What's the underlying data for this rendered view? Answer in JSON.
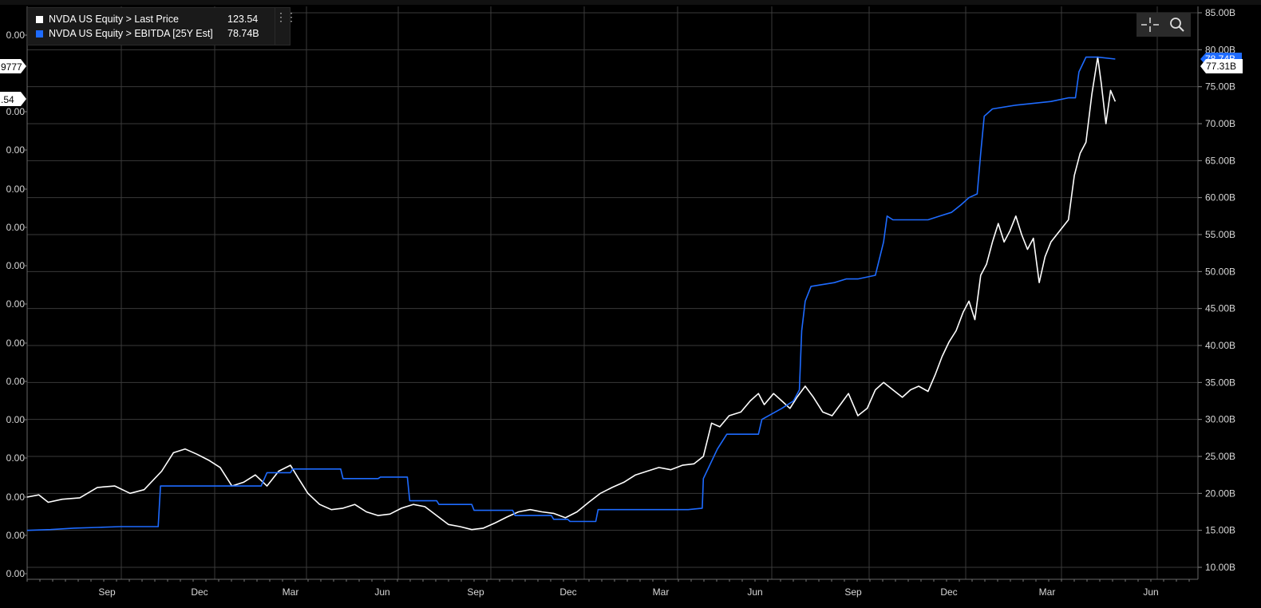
{
  "legend": {
    "items": [
      {
        "label": "NVDA US Equity > Last Price",
        "value": "123.54",
        "color": "#ffffff"
      },
      {
        "label": "NVDA US Equity > EBITDA [25Y Est]",
        "value": "78.74B",
        "color": "#1e6bff"
      }
    ]
  },
  "toolbar": {
    "crosshair_icon": "crosshair-icon",
    "zoom_icon": "magnifier-icon"
  },
  "chart_data": {
    "type": "line",
    "right_axis": {
      "ticks": [
        "10.00B",
        "15.00B",
        "20.00B",
        "25.00B",
        "30.00B",
        "35.00B",
        "40.00B",
        "45.00B",
        "50.00B",
        "55.00B",
        "60.00B",
        "65.00B",
        "70.00B",
        "75.00B",
        "80.00B",
        "85.00B"
      ],
      "range": [
        10,
        85
      ]
    },
    "left_axis": {
      "ticks": [
        "0.00",
        "0.00",
        "0.00",
        "0.00",
        "0.00",
        "0.00",
        "0.00",
        "0.00",
        "0.00",
        "0.00",
        "0.00",
        "0.00",
        "0.00",
        "0.00"
      ]
    },
    "x_ticks": [
      "Sep",
      "Dec",
      "Mar",
      "Jun",
      "Sep",
      "Dec",
      "Mar",
      "Jun",
      "Sep",
      "Dec",
      "Mar",
      "Jun"
    ],
    "x_range": [
      0,
      1
    ],
    "current_labels": {
      "right_blue": "78.74B",
      "right_white": "77.31B",
      "left_a": "9777",
      "left_b": ".54"
    },
    "series": [
      {
        "name": "NVDA US Equity > Last Price",
        "color": "#ffffff",
        "points": [
          [
            0.0,
            19.5
          ],
          [
            0.01,
            19.8
          ],
          [
            0.018,
            18.8
          ],
          [
            0.03,
            19.2
          ],
          [
            0.045,
            19.4
          ],
          [
            0.06,
            20.8
          ],
          [
            0.075,
            21.0
          ],
          [
            0.088,
            20.0
          ],
          [
            0.1,
            20.5
          ],
          [
            0.115,
            23.0
          ],
          [
            0.125,
            25.5
          ],
          [
            0.135,
            26.0
          ],
          [
            0.145,
            25.3
          ],
          [
            0.155,
            24.5
          ],
          [
            0.165,
            23.5
          ],
          [
            0.175,
            21.0
          ],
          [
            0.185,
            21.5
          ],
          [
            0.195,
            22.5
          ],
          [
            0.205,
            21.0
          ],
          [
            0.215,
            23.0
          ],
          [
            0.225,
            23.8
          ],
          [
            0.232,
            22.0
          ],
          [
            0.24,
            20.0
          ],
          [
            0.25,
            18.5
          ],
          [
            0.26,
            17.8
          ],
          [
            0.27,
            18.0
          ],
          [
            0.28,
            18.5
          ],
          [
            0.29,
            17.5
          ],
          [
            0.3,
            17.0
          ],
          [
            0.31,
            17.2
          ],
          [
            0.32,
            18.0
          ],
          [
            0.33,
            18.5
          ],
          [
            0.34,
            18.2
          ],
          [
            0.35,
            17.0
          ],
          [
            0.36,
            15.8
          ],
          [
            0.37,
            15.5
          ],
          [
            0.38,
            15.1
          ],
          [
            0.39,
            15.3
          ],
          [
            0.4,
            16.0
          ],
          [
            0.41,
            16.8
          ],
          [
            0.42,
            17.5
          ],
          [
            0.43,
            17.8
          ],
          [
            0.44,
            17.5
          ],
          [
            0.45,
            17.3
          ],
          [
            0.46,
            16.7
          ],
          [
            0.47,
            17.5
          ],
          [
            0.48,
            18.8
          ],
          [
            0.49,
            20.0
          ],
          [
            0.5,
            20.8
          ],
          [
            0.51,
            21.5
          ],
          [
            0.52,
            22.5
          ],
          [
            0.53,
            23.0
          ],
          [
            0.54,
            23.5
          ],
          [
            0.55,
            23.2
          ],
          [
            0.56,
            23.8
          ],
          [
            0.57,
            24.0
          ],
          [
            0.578,
            25.0
          ],
          [
            0.585,
            29.5
          ],
          [
            0.592,
            29.0
          ],
          [
            0.6,
            30.5
          ],
          [
            0.61,
            31.0
          ],
          [
            0.618,
            32.5
          ],
          [
            0.625,
            33.5
          ],
          [
            0.63,
            32.0
          ],
          [
            0.638,
            33.5
          ],
          [
            0.645,
            32.5
          ],
          [
            0.652,
            31.5
          ],
          [
            0.658,
            33.0
          ],
          [
            0.665,
            34.5
          ],
          [
            0.672,
            33.0
          ],
          [
            0.68,
            31.0
          ],
          [
            0.688,
            30.5
          ],
          [
            0.695,
            32.0
          ],
          [
            0.702,
            33.5
          ],
          [
            0.71,
            30.5
          ],
          [
            0.718,
            31.5
          ],
          [
            0.725,
            34.0
          ],
          [
            0.732,
            35.0
          ],
          [
            0.74,
            34.0
          ],
          [
            0.748,
            33.0
          ],
          [
            0.755,
            34.0
          ],
          [
            0.762,
            34.5
          ],
          [
            0.77,
            33.8
          ],
          [
            0.776,
            36.0
          ],
          [
            0.782,
            38.5
          ],
          [
            0.788,
            40.5
          ],
          [
            0.794,
            42.0
          ],
          [
            0.8,
            44.5
          ],
          [
            0.805,
            46.0
          ],
          [
            0.81,
            43.5
          ],
          [
            0.815,
            49.5
          ],
          [
            0.82,
            51.0
          ],
          [
            0.825,
            54.0
          ],
          [
            0.83,
            56.5
          ],
          [
            0.835,
            54.0
          ],
          [
            0.84,
            55.5
          ],
          [
            0.845,
            57.5
          ],
          [
            0.85,
            55.0
          ],
          [
            0.855,
            53.0
          ],
          [
            0.86,
            54.5
          ],
          [
            0.865,
            48.5
          ],
          [
            0.87,
            52.0
          ],
          [
            0.875,
            54.0
          ],
          [
            0.88,
            55.0
          ],
          [
            0.885,
            56.0
          ],
          [
            0.89,
            57.0
          ],
          [
            0.895,
            63.0
          ],
          [
            0.9,
            66.0
          ],
          [
            0.905,
            67.5
          ],
          [
            0.91,
            74.0
          ],
          [
            0.915,
            79.0
          ],
          [
            0.918,
            75.5
          ],
          [
            0.922,
            70.0
          ],
          [
            0.926,
            74.5
          ],
          [
            0.93,
            73.0
          ]
        ]
      },
      {
        "name": "NVDA US Equity > EBITDA [25Y Est]",
        "color": "#1e6bff",
        "points": [
          [
            0.0,
            15.0
          ],
          [
            0.02,
            15.1
          ],
          [
            0.04,
            15.3
          ],
          [
            0.06,
            15.4
          ],
          [
            0.08,
            15.5
          ],
          [
            0.112,
            15.5
          ],
          [
            0.114,
            21.0
          ],
          [
            0.2,
            21.0
          ],
          [
            0.205,
            22.8
          ],
          [
            0.225,
            22.8
          ],
          [
            0.227,
            23.3
          ],
          [
            0.268,
            23.3
          ],
          [
            0.27,
            22.0
          ],
          [
            0.3,
            22.0
          ],
          [
            0.302,
            22.2
          ],
          [
            0.325,
            22.2
          ],
          [
            0.327,
            19.0
          ],
          [
            0.35,
            19.0
          ],
          [
            0.352,
            18.5
          ],
          [
            0.38,
            18.5
          ],
          [
            0.382,
            17.7
          ],
          [
            0.415,
            17.7
          ],
          [
            0.417,
            17.0
          ],
          [
            0.448,
            17.0
          ],
          [
            0.45,
            16.5
          ],
          [
            0.462,
            16.5
          ],
          [
            0.464,
            16.2
          ],
          [
            0.486,
            16.2
          ],
          [
            0.488,
            17.8
          ],
          [
            0.54,
            17.8
          ],
          [
            0.565,
            17.8
          ],
          [
            0.577,
            18.0
          ],
          [
            0.578,
            22.0
          ],
          [
            0.59,
            26.0
          ],
          [
            0.598,
            28.0
          ],
          [
            0.625,
            28.0
          ],
          [
            0.628,
            30.0
          ],
          [
            0.645,
            31.5
          ],
          [
            0.655,
            32.5
          ],
          [
            0.66,
            34.0
          ],
          [
            0.662,
            42.0
          ],
          [
            0.665,
            46.0
          ],
          [
            0.67,
            48.0
          ],
          [
            0.69,
            48.5
          ],
          [
            0.7,
            49.0
          ],
          [
            0.71,
            49.0
          ],
          [
            0.725,
            49.5
          ],
          [
            0.732,
            54.0
          ],
          [
            0.735,
            57.5
          ],
          [
            0.74,
            57.0
          ],
          [
            0.77,
            57.0
          ],
          [
            0.78,
            57.5
          ],
          [
            0.79,
            58.0
          ],
          [
            0.798,
            59.0
          ],
          [
            0.805,
            60.0
          ],
          [
            0.812,
            60.5
          ],
          [
            0.815,
            66.0
          ],
          [
            0.818,
            71.0
          ],
          [
            0.825,
            72.0
          ],
          [
            0.845,
            72.5
          ],
          [
            0.875,
            73.0
          ],
          [
            0.89,
            73.5
          ],
          [
            0.896,
            73.5
          ],
          [
            0.899,
            77.0
          ],
          [
            0.905,
            79.0
          ],
          [
            0.915,
            79.0
          ],
          [
            0.93,
            78.74
          ]
        ]
      }
    ]
  }
}
